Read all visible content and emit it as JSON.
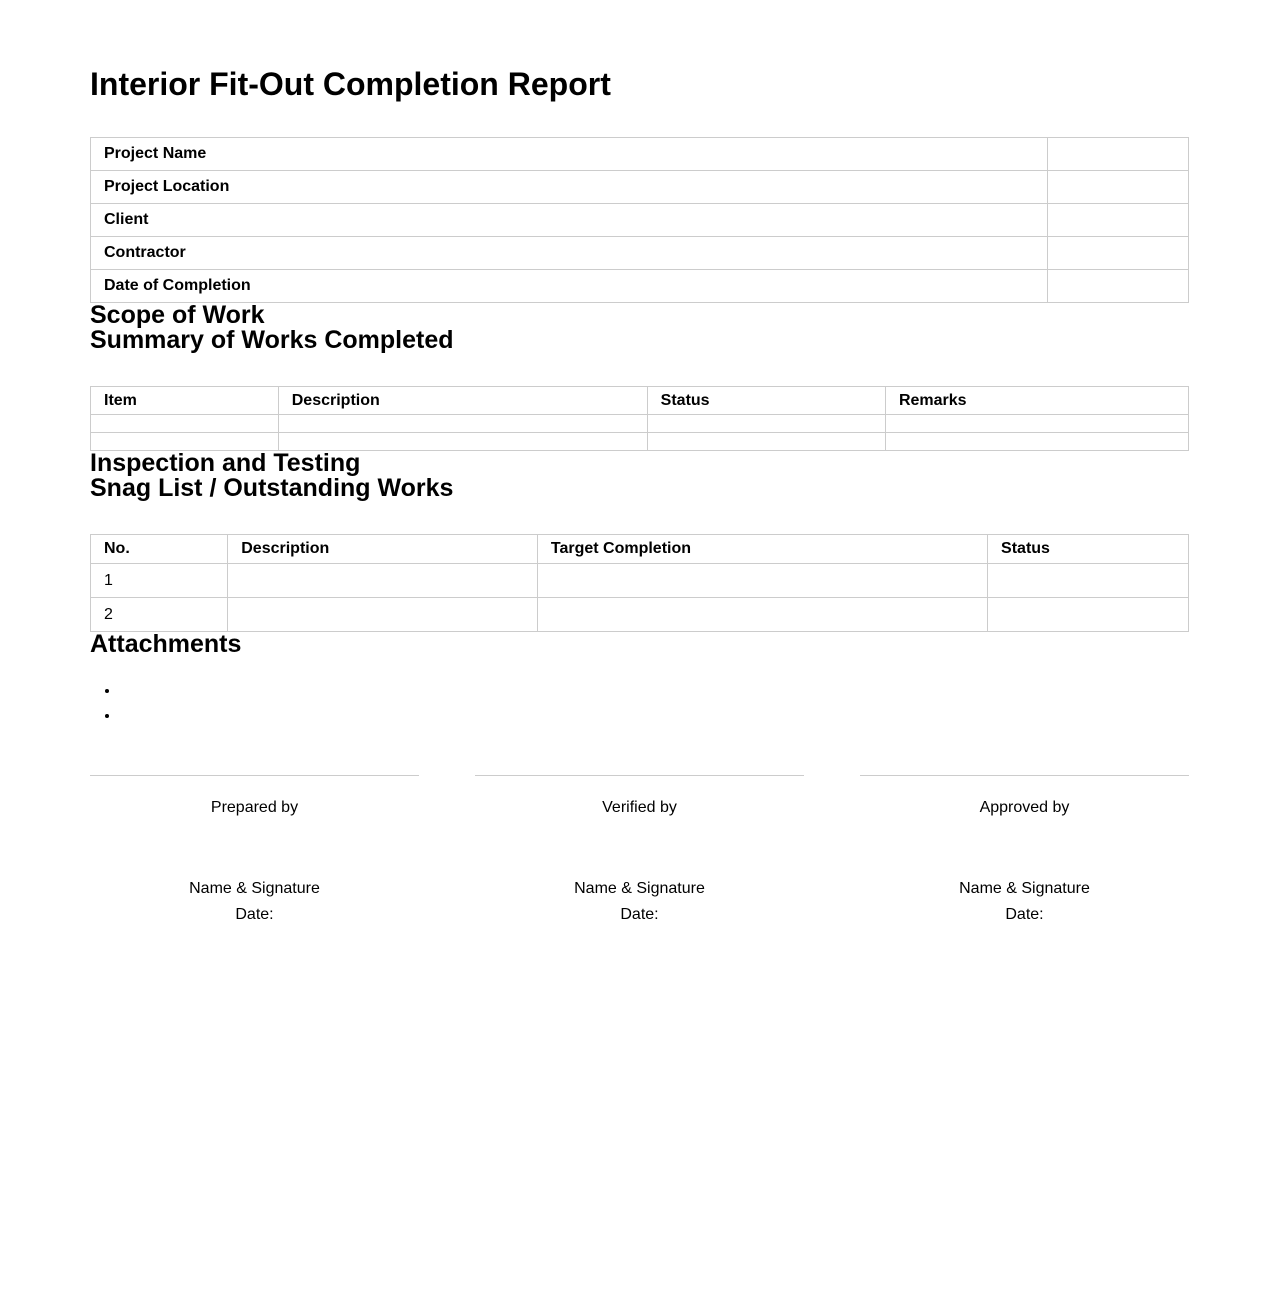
{
  "document": {
    "title": "Interior Fit-Out Completion Report"
  },
  "project_info_table": {
    "rows": [
      {
        "label": "Project Name",
        "value": ""
      },
      {
        "label": "Project Location",
        "value": ""
      },
      {
        "label": "Client",
        "value": ""
      },
      {
        "label": "Contractor",
        "value": ""
      },
      {
        "label": "Date of Completion",
        "value": ""
      }
    ]
  },
  "headings": {
    "scope_of_work": "Scope of Work",
    "summary_of_works": "Summary of Works Completed",
    "inspection_and_testing": "Inspection and Testing",
    "snag_list": "Snag List / Outstanding Works",
    "attachments": "Attachments"
  },
  "summary_table": {
    "headers": [
      "Item",
      "Description",
      "Status",
      "Remarks"
    ],
    "rows": [
      [
        "",
        "",
        "",
        ""
      ],
      [
        "",
        "",
        "",
        ""
      ]
    ]
  },
  "snag_table": {
    "headers": [
      "No.",
      "Description",
      "Target Completion",
      "Status"
    ],
    "rows": [
      [
        "1",
        "",
        "",
        ""
      ],
      [
        "2",
        "",
        "",
        ""
      ]
    ]
  },
  "attachments": {
    "items": [
      "",
      ""
    ]
  },
  "signature_blocks": [
    {
      "role": "Prepared by",
      "name_line": "Name & Signature",
      "date_line": "Date:"
    },
    {
      "role": "Verified by",
      "name_line": "Name & Signature",
      "date_line": "Date:"
    },
    {
      "role": "Approved by",
      "name_line": "Name & Signature",
      "date_line": "Date:"
    }
  ],
  "colors": {
    "background": "#ffffff",
    "text": "#000000",
    "table_border": "#cccccc"
  }
}
